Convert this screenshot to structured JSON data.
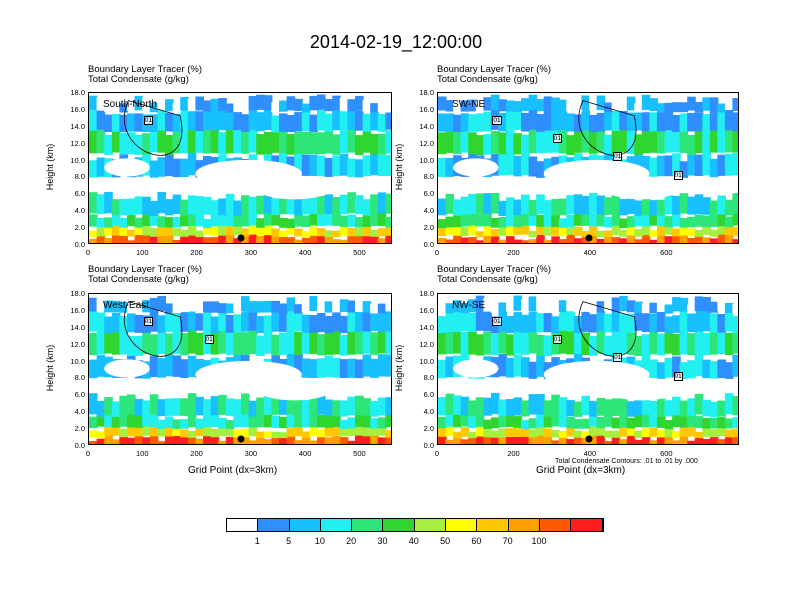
{
  "title": "2014-02-19_12:00:00",
  "colorbar": {
    "colors": [
      "#ffffff",
      "#2f8fff",
      "#19c0ff",
      "#22f0f0",
      "#2de67a",
      "#2fd62f",
      "#a8ee3c",
      "#ffff00",
      "#ffc800",
      "#ffa000",
      "#ff5a00",
      "#ff1e1e"
    ],
    "labels": [
      "1",
      "5",
      "10",
      "20",
      "30",
      "40",
      "50",
      "60",
      "70",
      "100"
    ]
  },
  "chart_data": [
    {
      "type": "heatmap",
      "panel": "South-North",
      "title_line1": "Boundary Layer Tracer   (%)",
      "title_line2": "Total Condensate   (g/kg)",
      "label": "South-North",
      "ylabel": "Height (km)",
      "xlabel": "",
      "yticks": [
        "0.0",
        "2.0",
        "4.0",
        "6.0",
        "8.0",
        "10.0",
        "12.0",
        "14.0",
        "16.0",
        "18.0"
      ],
      "xticks": [
        "0",
        "100",
        "200",
        "300",
        "400",
        "500"
      ],
      "xlim": [
        0,
        560
      ],
      "ylim": [
        0,
        18
      ],
      "contour_labels": [
        "01"
      ],
      "marker_x": 280
    },
    {
      "type": "heatmap",
      "panel": "SW-NE",
      "title_line1": "Boundary Layer Tracer   (%)",
      "title_line2": "Total Condensate   (g/kg)",
      "label": "SW-NE",
      "ylabel": "Height (km)",
      "xlabel": "",
      "yticks": [
        "0.0",
        "2.0",
        "4.0",
        "6.0",
        "8.0",
        "10.0",
        "12.0",
        "14.0",
        "16.0",
        "18.0"
      ],
      "xticks": [
        "0",
        "200",
        "400",
        "600"
      ],
      "xlim": [
        0,
        790
      ],
      "ylim": [
        0,
        18
      ],
      "contour_labels": [
        "01",
        "01",
        "01",
        "01"
      ],
      "marker_x": 395
    },
    {
      "type": "heatmap",
      "panel": "West-East",
      "title_line1": "Boundary Layer Tracer   (%)",
      "title_line2": "Total Condensate   (g/kg)",
      "label": "West-East",
      "ylabel": "Height (km)",
      "xlabel": "Grid Point (dx=3km)",
      "yticks": [
        "0.0",
        "2.0",
        "4.0",
        "6.0",
        "8.0",
        "10.0",
        "12.0",
        "14.0",
        "16.0",
        "18.0"
      ],
      "xticks": [
        "0",
        "100",
        "200",
        "300",
        "400",
        "500"
      ],
      "xlim": [
        0,
        560
      ],
      "ylim": [
        0,
        18
      ],
      "contour_labels": [
        "01",
        "01"
      ],
      "marker_x": 280
    },
    {
      "type": "heatmap",
      "panel": "NW-SE",
      "title_line1": "Boundary Layer Tracer   (%)",
      "title_line2": "Total Condensate   (g/kg)",
      "label": "NW-SE",
      "ylabel": "Height (km)",
      "xlabel": "Grid Point (dx=3km)",
      "yticks": [
        "0.0",
        "2.0",
        "4.0",
        "6.0",
        "8.0",
        "10.0",
        "12.0",
        "14.0",
        "16.0",
        "18.0"
      ],
      "xticks": [
        "0",
        "200",
        "400",
        "600"
      ],
      "xlim": [
        0,
        790
      ],
      "ylim": [
        0,
        18
      ],
      "contour_labels": [
        "01",
        "01",
        "01",
        "01"
      ],
      "marker_x": 395,
      "note": "Total Condensate Contours: .01 to .01 by .000"
    }
  ]
}
